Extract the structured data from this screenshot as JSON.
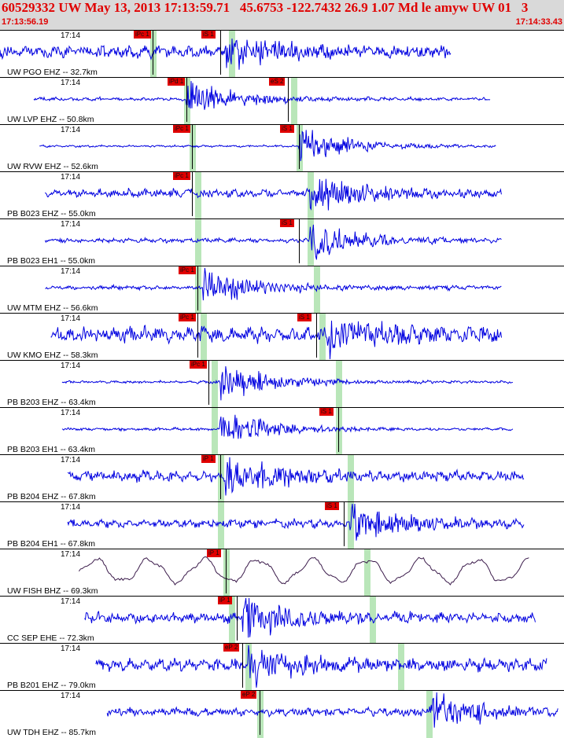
{
  "header": {
    "title": "60529332 UW May 13, 2013 17:13:59.71   45.6753 -122.7432 26.9 1.07 Md le amyw UW 01   3",
    "start_time": "17:13:56.19",
    "end_time": "17:14:33.43"
  },
  "colors": {
    "header_bg": "#d9d9d9",
    "header_text": "#e00000",
    "trace": "#0000e0",
    "trace_broadband": "#3a1a4a",
    "pick_flag": "#e00000",
    "theoretical_band": "#b9e6b9"
  },
  "traces": [
    {
      "time_label": "17:14",
      "station": "UW PGO EHZ -- 32.7km",
      "picks": [
        {
          "label": "iPc 1",
          "pos": 0.27
        },
        {
          "label": "iS 1",
          "pos": 0.39
        }
      ],
      "bands": [
        0.27,
        0.41
      ],
      "start": 0.0,
      "end": 0.8,
      "arrival": 0.4,
      "amp": 0.18
    },
    {
      "time_label": "17:14",
      "station": "UW LVP EHZ -- 50.8km",
      "picks": [
        {
          "label": "iPd 1",
          "pos": 0.33
        },
        {
          "label": "eS 2",
          "pos": 0.51
        }
      ],
      "bands": [
        0.33,
        0.52
      ],
      "start": 0.06,
      "end": 0.87,
      "arrival": 0.33,
      "amp": 0.05
    },
    {
      "time_label": "17:14",
      "station": "UW RVW EHZ -- 52.6km",
      "picks": [
        {
          "label": "iPc 1",
          "pos": 0.34
        },
        {
          "label": "iS 1",
          "pos": 0.53
        }
      ],
      "bands": [
        0.34,
        0.53
      ],
      "start": 0.07,
      "end": 0.88,
      "arrival": 0.53,
      "amp": 0.03
    },
    {
      "time_label": "17:14",
      "station": "PB B023 EHZ -- 55.0km",
      "picks": [
        {
          "label": "iPc 1",
          "pos": 0.34
        }
      ],
      "bands": [
        0.35,
        0.55
      ],
      "start": 0.08,
      "end": 0.89,
      "arrival": 0.55,
      "amp": 0.12
    },
    {
      "time_label": "17:14",
      "station": "PB B023 EH1 -- 55.0km",
      "picks": [
        {
          "label": "iS 1",
          "pos": 0.53
        }
      ],
      "bands": [
        0.35,
        0.55
      ],
      "start": 0.08,
      "end": 0.89,
      "arrival": 0.55,
      "amp": 0.06
    },
    {
      "time_label": "17:14",
      "station": "UW MTM EHZ -- 56.6km",
      "picks": [
        {
          "label": "iPc 1",
          "pos": 0.35
        }
      ],
      "bands": [
        0.35,
        0.56
      ],
      "start": 0.08,
      "end": 0.89,
      "arrival": 0.36,
      "amp": 0.06
    },
    {
      "time_label": "17:14",
      "station": "UW KMO EHZ -- 58.3km",
      "picks": [
        {
          "label": "iPc 1",
          "pos": 0.35
        },
        {
          "label": "iS 1",
          "pos": 0.56
        }
      ],
      "bands": [
        0.36,
        0.57
      ],
      "start": 0.09,
      "end": 0.89,
      "arrival": 0.58,
      "amp": 0.22
    },
    {
      "time_label": "17:14",
      "station": "PB B203 EHZ -- 63.4km",
      "picks": [
        {
          "label": "iPc 1",
          "pos": 0.37
        }
      ],
      "bands": [
        0.38,
        0.6
      ],
      "start": 0.11,
      "end": 0.91,
      "arrival": 0.39,
      "amp": 0.04
    },
    {
      "time_label": "17:14",
      "station": "PB B203 EH1 -- 63.4km",
      "picks": [
        {
          "label": "iS 1",
          "pos": 0.6
        }
      ],
      "bands": [
        0.38,
        0.6
      ],
      "start": 0.11,
      "end": 0.91,
      "arrival": 0.39,
      "amp": 0.04
    },
    {
      "time_label": "17:14",
      "station": "PB B204 EHZ -- 67.8km",
      "picks": [
        {
          "label": "iP 1",
          "pos": 0.39
        }
      ],
      "bands": [
        0.39,
        0.62
      ],
      "start": 0.12,
      "end": 0.93,
      "arrival": 0.4,
      "amp": 0.15
    },
    {
      "time_label": "17:14",
      "station": "PB B204 EH1 -- 67.8km",
      "picks": [
        {
          "label": "iS 1",
          "pos": 0.61
        }
      ],
      "bands": [
        0.39,
        0.62
      ],
      "start": 0.12,
      "end": 0.93,
      "arrival": 0.62,
      "amp": 0.12
    },
    {
      "time_label": "17:14",
      "station": "UW FISH BHZ -- 69.3km",
      "picks": [
        {
          "label": "iP 1",
          "pos": 0.4
        }
      ],
      "bands": [
        0.4,
        0.65
      ],
      "start": 0.14,
      "end": 0.94,
      "arrival": 0.4,
      "amp": 0.35,
      "broadband": true
    },
    {
      "time_label": "17:14",
      "station": "CC SEP EHE -- 72.3km",
      "picks": [
        {
          "label": "iP 1",
          "pos": 0.42
        }
      ],
      "bands": [
        0.41,
        0.66
      ],
      "start": 0.15,
      "end": 0.95,
      "arrival": 0.43,
      "amp": 0.15
    },
    {
      "time_label": "17:14",
      "station": "PB B201 EHZ -- 79.0km",
      "picks": [
        {
          "label": "eP 2",
          "pos": 0.43
        }
      ],
      "bands": [
        0.44,
        0.71
      ],
      "start": 0.17,
      "end": 0.97,
      "arrival": 0.44,
      "amp": 0.18
    },
    {
      "time_label": "17:14",
      "station": "UW TDH EHZ -- 85.7km",
      "picks": [
        {
          "label": "eP 2",
          "pos": 0.46
        }
      ],
      "bands": [
        0.46,
        0.76
      ],
      "start": 0.19,
      "end": 0.99,
      "arrival": 0.76,
      "amp": 0.12
    }
  ]
}
